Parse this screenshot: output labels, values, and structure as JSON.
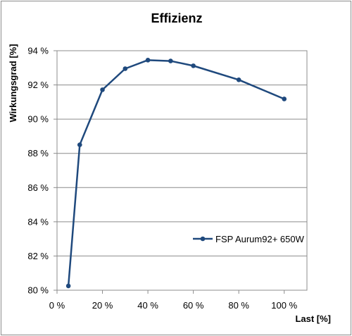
{
  "chart_data": {
    "type": "line",
    "title": "Effizienz",
    "xlabel": "Last [%]",
    "ylabel": "Wirkungsgrad [%]",
    "xlim": [
      0,
      110
    ],
    "ylim": [
      80,
      94
    ],
    "x_ticks": [
      0,
      20,
      40,
      60,
      80,
      100
    ],
    "x_tick_labels": [
      "0 %",
      "20 %",
      "40 %",
      "60 %",
      "80 %",
      "100 %"
    ],
    "y_ticks": [
      80,
      82,
      84,
      86,
      88,
      90,
      92,
      94
    ],
    "y_tick_labels": [
      "80 %",
      "82 %",
      "84 %",
      "86 %",
      "88 %",
      "90 %",
      "92 %",
      "94 %"
    ],
    "grid": true,
    "legend_position": "bottom-right",
    "series": [
      {
        "name": "FSP Aurum92+ 650W",
        "color": "#1f497d",
        "x": [
          5,
          10,
          20,
          30,
          40,
          50,
          60,
          80,
          100
        ],
        "y": [
          80.25,
          88.5,
          91.72,
          92.95,
          93.45,
          93.4,
          93.12,
          92.3,
          91.18
        ]
      }
    ]
  }
}
